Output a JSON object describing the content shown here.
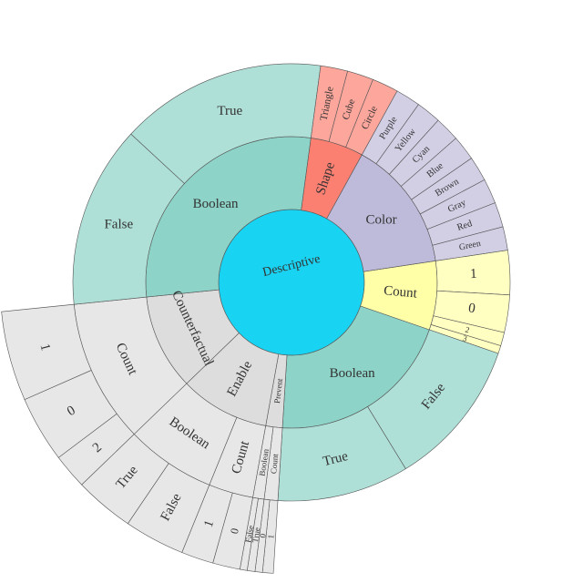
{
  "chart_data": {
    "type": "sunburst",
    "title": "",
    "colors": {
      "Descriptive": "#19d3f3",
      "Count": "#ffffa8",
      "Boolean": "#8dd3c7",
      "Color": "#bebada",
      "Shape": "#fb8072"
    },
    "tree": {
      "label": "Descriptive",
      "children": [
        {
          "label": "Count",
          "value": 0.0705,
          "children": [
            {
              "label": "1",
              "value": 0.0303
            },
            {
              "label": "0",
              "value": 0.0256
            },
            {
              "label": "2",
              "value": 0.0092
            },
            {
              "label": "3",
              "value": 0.0054
            }
          ]
        },
        {
          "label": "Boolean",
          "value": 0.1915,
          "children": [
            {
              "label": "False",
              "value": 0.1015
            },
            {
              "label": "True",
              "value": 0.09
            }
          ]
        },
        {
          "label": "Prevent",
          "value": 0.017,
          "children": [
            {
              "label": "Count",
              "value": 0.0093,
              "children": [
                {
                  "label": "1",
                  "value": 0.0055
                },
                {
                  "label": "0",
                  "value": 0.0038
                }
              ]
            },
            {
              "label": "Boolean",
              "value": 0.0077,
              "children": [
                {
                  "label": "True",
                  "value": 0.004
                },
                {
                  "label": "False",
                  "value": 0.0037
                }
              ]
            }
          ]
        },
        {
          "label": "Enable",
          "value": 0.092,
          "children": [
            {
              "label": "Count",
              "value": 0.0305,
              "children": [
                {
                  "label": "0",
                  "value": 0.014
                },
                {
                  "label": "1",
                  "value": 0.0165
                }
              ]
            },
            {
              "label": "Boolean",
              "value": 0.0615,
              "children": [
                {
                  "label": "False",
                  "value": 0.031
                },
                {
                  "label": "True",
                  "value": 0.0305
                }
              ]
            }
          ]
        },
        {
          "label": "Counterfactual",
          "value": 0.098,
          "children": [
            {
              "label": "Count",
              "value": 0.098,
              "children": [
                {
                  "label": "2",
                  "value": 0.018
                },
                {
                  "label": "0",
                  "value": 0.034
                },
                {
                  "label": "1",
                  "value": 0.046
                }
              ]
            }
          ]
        },
        {
          "label": "Boolean",
          "value": 0.2655,
          "children": [
            {
              "label": "False",
              "value": 0.1245
            },
            {
              "label": "True",
              "value": 0.141
            }
          ]
        },
        {
          "label": "Shape",
          "value": 0.0545,
          "children": [
            {
              "label": "Triangle",
              "value": 0.0185
            },
            {
              "label": "Cube",
              "value": 0.018
            },
            {
              "label": "Circle",
              "value": 0.018
            }
          ]
        },
        {
          "label": "Color",
          "value": 0.135,
          "children": [
            {
              "label": "Purple",
              "value": 0.017
            },
            {
              "label": "Yellow",
              "value": 0.017
            },
            {
              "label": "Cyan",
              "value": 0.017
            },
            {
              "label": "Blue",
              "value": 0.017
            },
            {
              "label": "Brown",
              "value": 0.017
            },
            {
              "label": "Gray",
              "value": 0.017
            },
            {
              "label": "Red",
              "value": 0.017
            },
            {
              "label": "Green",
              "value": 0.016
            }
          ]
        }
      ]
    }
  }
}
